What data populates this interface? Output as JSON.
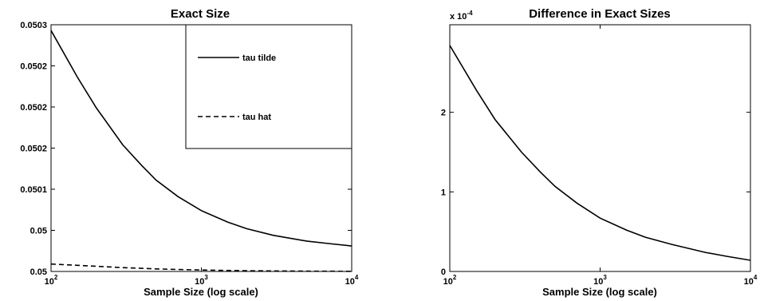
{
  "chart_data": [
    {
      "type": "line",
      "title": "Exact Size",
      "xlabel": "Sample Size (log scale)",
      "ylabel": "",
      "xscale": "log",
      "xlim": [
        100,
        10000
      ],
      "ylim": [
        0.05,
        0.0503
      ],
      "x_ticks": [
        {
          "base": "10",
          "exp": "2",
          "value": 100
        },
        {
          "base": "10",
          "exp": "3",
          "value": 1000
        },
        {
          "base": "10",
          "exp": "4",
          "value": 10000
        }
      ],
      "y_ticks": [
        {
          "value": 0.05,
          "label": "0.05"
        },
        {
          "value": 0.05005,
          "label": "0.05"
        },
        {
          "value": 0.0501,
          "label": "0.0501"
        },
        {
          "value": 0.05015,
          "label": "0.0502"
        },
        {
          "value": 0.0502,
          "label": "0.0502"
        },
        {
          "value": 0.05025,
          "label": "0.0502"
        },
        {
          "value": 0.0503,
          "label": "0.0503"
        },
        {
          "value": 0.05035,
          "label": "0.0503"
        }
      ],
      "legend": {
        "placement": "top-right",
        "entries": [
          {
            "label": "tau tilde",
            "style": "solid"
          },
          {
            "label": "tau hat",
            "style": "dashed"
          }
        ]
      },
      "series": [
        {
          "name": "tau tilde",
          "style": "solid",
          "color": "#000000",
          "x": [
            100,
            150,
            200,
            300,
            400,
            500,
            700,
            1000,
            1500,
            2000,
            3000,
            5000,
            7000,
            10000
          ],
          "y": [
            0.050293,
            0.050236,
            0.050199,
            0.050154,
            0.050129,
            0.050111,
            0.050091,
            0.050074,
            0.05006,
            0.050052,
            0.050044,
            0.050037,
            0.050034,
            0.050031
          ]
        },
        {
          "name": "tau hat",
          "style": "dashed",
          "color": "#000000",
          "x": [
            100,
            200,
            300,
            500,
            1000,
            2000,
            5000,
            10000
          ],
          "y": [
            0.050009,
            0.0500063,
            0.0500047,
            0.0500031,
            0.0500017,
            0.0500009,
            0.0500004,
            0.0500002
          ]
        }
      ]
    },
    {
      "type": "line",
      "title": "Difference in Exact Sizes",
      "xlabel": "Sample Size (log scale)",
      "ylabel": "",
      "xscale": "log",
      "xlim": [
        100,
        10000
      ],
      "ylim": [
        0,
        3.1
      ],
      "y_multiplier": {
        "base": "x 10",
        "exp": "-4"
      },
      "x_ticks": [
        {
          "base": "10",
          "exp": "2",
          "value": 100
        },
        {
          "base": "10",
          "exp": "3",
          "value": 1000
        },
        {
          "base": "10",
          "exp": "4",
          "value": 10000
        }
      ],
      "y_ticks": [
        {
          "value": 0,
          "label": "0"
        },
        {
          "value": 1,
          "label": "1"
        },
        {
          "value": 2,
          "label": "2"
        }
      ],
      "series": [
        {
          "style": "solid",
          "color": "#000000",
          "x": [
            100,
            150,
            200,
            300,
            400,
            500,
            700,
            1000,
            1500,
            2000,
            3000,
            5000,
            7000,
            10000
          ],
          "y": [
            2.84,
            2.28,
            1.91,
            1.5,
            1.25,
            1.07,
            0.86,
            0.67,
            0.52,
            0.43,
            0.34,
            0.24,
            0.19,
            0.14
          ]
        }
      ]
    }
  ]
}
